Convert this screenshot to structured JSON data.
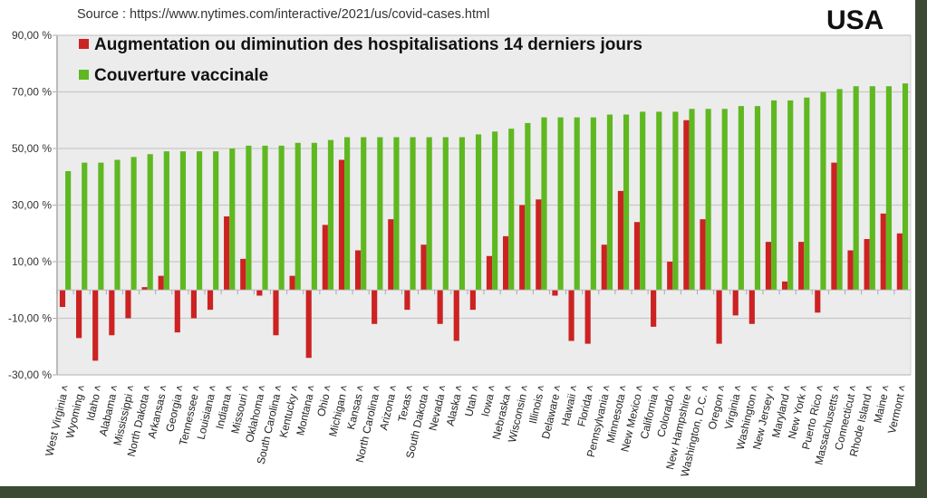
{
  "header": {
    "source": "Source : https://www.nytimes.com/interactive/2021/us/covid-cases.html",
    "country": "USA"
  },
  "chart_data": {
    "type": "bar",
    "title": "USA",
    "subtitle": "Source : https://www.nytimes.com/interactive/2021/us/covid-cases.html",
    "xlabel": "",
    "ylabel": "",
    "ylim": [
      -30,
      90
    ],
    "yticks": [
      90,
      70,
      50,
      30,
      10,
      -10,
      -30
    ],
    "ytick_labels": [
      "90,00 %",
      "70,00 %",
      "50,00 %",
      "30,00 %",
      "10,00 %",
      "-10,00 %",
      "-30,00 %"
    ],
    "grid": true,
    "legend_position": "top-left",
    "categories": [
      "West Virginia",
      "Wyoming",
      "Idaho",
      "Alabama",
      "Mississippi",
      "North Dakota",
      "Arkansas",
      "Georgia",
      "Tennessee",
      "Louisiana",
      "Indiana",
      "Missouri",
      "Oklahoma",
      "South Carolina",
      "Kentucky",
      "Montana",
      "Ohio",
      "Michigan",
      "Kansas",
      "North Carolina",
      "Arizona",
      "Texas",
      "South Dakota",
      "Nevada",
      "Alaska",
      "Utah",
      "Iowa",
      "Nebraska",
      "Wisconsin",
      "Illinois",
      "Delaware",
      "Hawaii",
      "Florida",
      "Pennsylvania",
      "Minnesota",
      "New Mexico",
      "California",
      "Colorado",
      "New Hampshire",
      "Washington, D.C.",
      "Oregon",
      "Virginia",
      "Washington",
      "New Jersey",
      "Maryland",
      "New York",
      "Puerto Rico",
      "Massachusetts",
      "Connecticut",
      "Rhode Island",
      "Maine",
      "Vermont"
    ],
    "label_suffix": " ˄",
    "series": [
      {
        "name": "Augmentation ou diminution des hospitalisations 14 derniers jours",
        "color": "#cc2222",
        "values": [
          -6,
          -17,
          -25,
          -16,
          -10,
          1,
          5,
          -15,
          -10,
          -7,
          26,
          11,
          -2,
          -16,
          5,
          -24,
          23,
          46,
          14,
          -12,
          25,
          -7,
          16,
          -12,
          -18,
          -7,
          12,
          19,
          30,
          32,
          -2,
          -18,
          -19,
          16,
          35,
          24,
          -13,
          10,
          60,
          25,
          -19,
          -9,
          -12,
          17,
          3,
          17,
          -8,
          45,
          14,
          18,
          27,
          20
        ]
      },
      {
        "name": "Couverture vaccinale",
        "color": "#5fb820",
        "values": [
          42,
          45,
          45,
          46,
          47,
          48,
          49,
          49,
          49,
          49,
          50,
          51,
          51,
          51,
          52,
          52,
          53,
          54,
          54,
          54,
          54,
          54,
          54,
          54,
          54,
          55,
          56,
          57,
          59,
          61,
          61,
          61,
          61,
          62,
          62,
          63,
          63,
          63,
          64,
          64,
          64,
          65,
          65,
          67,
          67,
          68,
          70,
          71,
          72,
          72,
          72,
          73
        ]
      }
    ]
  },
  "colors": {
    "plot_background": "#ececec",
    "gridline": "#c8c8c8",
    "frame": "#3c4a34"
  }
}
